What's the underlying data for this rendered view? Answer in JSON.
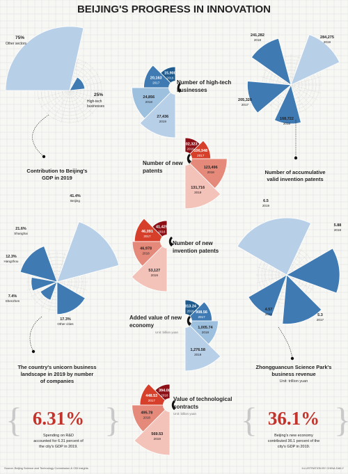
{
  "title": "BEIJING'S PROGRESS IN INNOVATION",
  "colors": {
    "dark_blue": "#1f5a8c",
    "mid_blue": "#3f7ab2",
    "light_blue": "#9ec0df",
    "pale_blue": "#b8cfe8",
    "dark_red": "#8b0f14",
    "red": "#d6402b",
    "salmon": "#e58a7a",
    "pink": "#f3c2b9",
    "ink": "#222222",
    "grid": "#d9dde0"
  },
  "chart_data": [
    {
      "type": "pie",
      "name": "gdp_contribution",
      "title": "Contribution to Beijing's GDP in 2019",
      "categories": [
        "Other sectors",
        "High-tech businesses"
      ],
      "values": [
        75,
        25
      ],
      "labels": [
        "75%",
        "25%"
      ]
    },
    {
      "type": "pie",
      "name": "hightech_businesses",
      "title": "Number of high-tech businesses",
      "categories": [
        "2016",
        "2017",
        "2018",
        "2019"
      ],
      "values": [
        15900,
        20163,
        24856,
        27436
      ],
      "labels": [
        "15,900",
        "20,163",
        "24,856",
        "27,436"
      ]
    },
    {
      "type": "pie",
      "name": "valid_invention_patents",
      "title": "Number of accumulative valid invention patents",
      "categories": [
        "2016",
        "2017",
        "2018",
        "2019"
      ],
      "values": [
        168722,
        205320,
        241282,
        284275
      ],
      "labels": [
        "168,722",
        "205,320",
        "241,282",
        "284,275"
      ]
    },
    {
      "type": "pie",
      "name": "new_patents",
      "title": "Number of new patents",
      "categories": [
        "2016",
        "2017",
        "2018",
        "2019"
      ],
      "values": [
        102323,
        106948,
        123496,
        131716
      ],
      "labels": [
        "102,323",
        "106,948",
        "123,496",
        "131,716"
      ]
    },
    {
      "type": "pie",
      "name": "unicorn_landscape",
      "title": "The country's unicorn business landscape in 2019 by number of companies",
      "categories": [
        "Beijing",
        "Shanghai",
        "Hangzhou",
        "Shenzhen",
        "Other cities"
      ],
      "values": [
        41.4,
        21.6,
        12.3,
        7.4,
        17.3
      ],
      "labels": [
        "41.4%",
        "21.6%",
        "12.3%",
        "7.4%",
        "17.3%"
      ]
    },
    {
      "type": "pie",
      "name": "new_invention_patents",
      "title": "Number of new invention patents",
      "categories": [
        "2016",
        "2017",
        "2018",
        "2019"
      ],
      "values": [
        41425,
        46091,
        46978,
        53127
      ],
      "labels": [
        "41,425",
        "46,091",
        "46,978",
        "53,127"
      ]
    },
    {
      "type": "pie",
      "name": "zgc_revenue",
      "title": "Zhongguancun Science Park's business revenue",
      "unit": "Unit: trillion yuan",
      "categories": [
        "2016",
        "2017",
        "2018",
        "2019"
      ],
      "values": [
        4.57,
        5.3,
        5.88,
        6.5
      ],
      "labels": [
        "4.57",
        "5.3",
        "5.88",
        "6.5"
      ]
    },
    {
      "type": "pie",
      "name": "new_economy_value",
      "title": "Added value of new economy",
      "unit": "Unit: billion yuan",
      "categories": [
        "2016",
        "2017",
        "2018",
        "2019"
      ],
      "values": [
        813.24,
        908.56,
        1005.74,
        1276.58
      ],
      "labels": [
        "813.24",
        "908.56",
        "1,005.74",
        "1,276.58"
      ]
    },
    {
      "type": "pie",
      "name": "tech_contracts",
      "title": "Value of technological contracts",
      "unit": "Unit: billion yuan",
      "categories": [
        "2016",
        "2017",
        "2018",
        "2019"
      ],
      "values": [
        394.08,
        448.53,
        495.78,
        569.53
      ],
      "labels": [
        "394.08",
        "448.53",
        "495.78",
        "569.53"
      ]
    }
  ],
  "texts": {
    "gdp_label_line1": "Contribution to Beijing's",
    "gdp_label_line2": "GDP in 2019",
    "other_sectors_pct": "75%",
    "other_sectors": "Other sectors",
    "hightech_pct": "25%",
    "hightech_line1": "High-tech",
    "hightech_line2": "businesses",
    "hightech_title_line1": "Number of high-tech",
    "hightech_title_line2": "businesses",
    "patents_acc_line1": "Number of accumulative",
    "patents_acc_line2": "valid invention patents",
    "new_patents_line1": "Number of new",
    "new_patents_line2": "patents",
    "new_inv_line1": "Number of new",
    "new_inv_line2": "invention patents",
    "unicorn_line1": "The country's unicorn business",
    "unicorn_line2": "landscape in 2019 by number",
    "unicorn_line3": "of companies",
    "zgc_line1": "Zhongguancun Science Park's",
    "zgc_line2": "business revenue",
    "zgc_unit": "Unit: trillion yuan",
    "new_econ_line1": "Added value of new",
    "new_econ_line2": "economy",
    "new_econ_unit": "Unit: billion yuan",
    "contracts_line1": "Value of technological",
    "contracts_line2": "contracts",
    "contracts_unit": "Unit: billion yuan",
    "rd_pct": "6.31%",
    "rd_line1": "Spending on R&D",
    "rd_line2": "accounted for 6.31 percent of",
    "rd_line3": "the city's GDP in 2019.",
    "neweco_pct": "36.1%",
    "neweco_line1": "Beijing's new economy",
    "neweco_line2": "contributed 36.1 percent of the",
    "neweco_line3": "city's GDP in 2019.",
    "source": "Source: Beijing Science and Technology Commission & CBI Insights",
    "credit": "ILLUSTRATION BY CHINA DAILY"
  }
}
